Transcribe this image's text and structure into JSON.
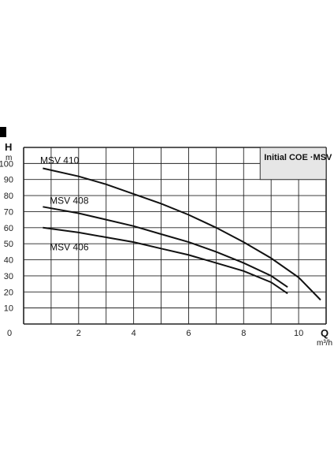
{
  "chart_data": {
    "type": "line",
    "xlabel": "Q",
    "xunit": "m³/h",
    "ylabel": "H",
    "yunit": "m",
    "xlim": [
      0,
      11
    ],
    "ylim": [
      0,
      110
    ],
    "grid": true,
    "x_ticks": [
      "0",
      "2",
      "4",
      "6",
      "8",
      "10"
    ],
    "y_ticks": [
      "10",
      "20",
      "30",
      "40",
      "50",
      "60",
      "70",
      "80",
      "90",
      "100"
    ],
    "legend_box": "Initial COE   ·MSV",
    "series": [
      {
        "name": "MSV 410",
        "x": [
          0.7,
          2,
          3,
          4,
          5,
          6,
          7,
          8,
          9,
          10,
          10.8
        ],
        "y": [
          97,
          92,
          87,
          81,
          75,
          68,
          60,
          51,
          41,
          29,
          15
        ]
      },
      {
        "name": "MSV 408",
        "x": [
          0.7,
          2,
          3,
          4,
          5,
          6,
          7,
          8,
          9,
          9.6
        ],
        "y": [
          73,
          69,
          65,
          61,
          56,
          51,
          45,
          38,
          30,
          23
        ]
      },
      {
        "name": "MSV 406",
        "x": [
          0.7,
          2,
          3,
          4,
          5,
          6,
          7,
          8,
          9,
          9.6
        ],
        "y": [
          60,
          57,
          54,
          51,
          47,
          43,
          38,
          33,
          26,
          19
        ]
      }
    ],
    "colors": {
      "line": "#111111",
      "grid": "#222222",
      "legend_bg": "#e6e6e6",
      "marker": "#d9d9d9"
    }
  }
}
